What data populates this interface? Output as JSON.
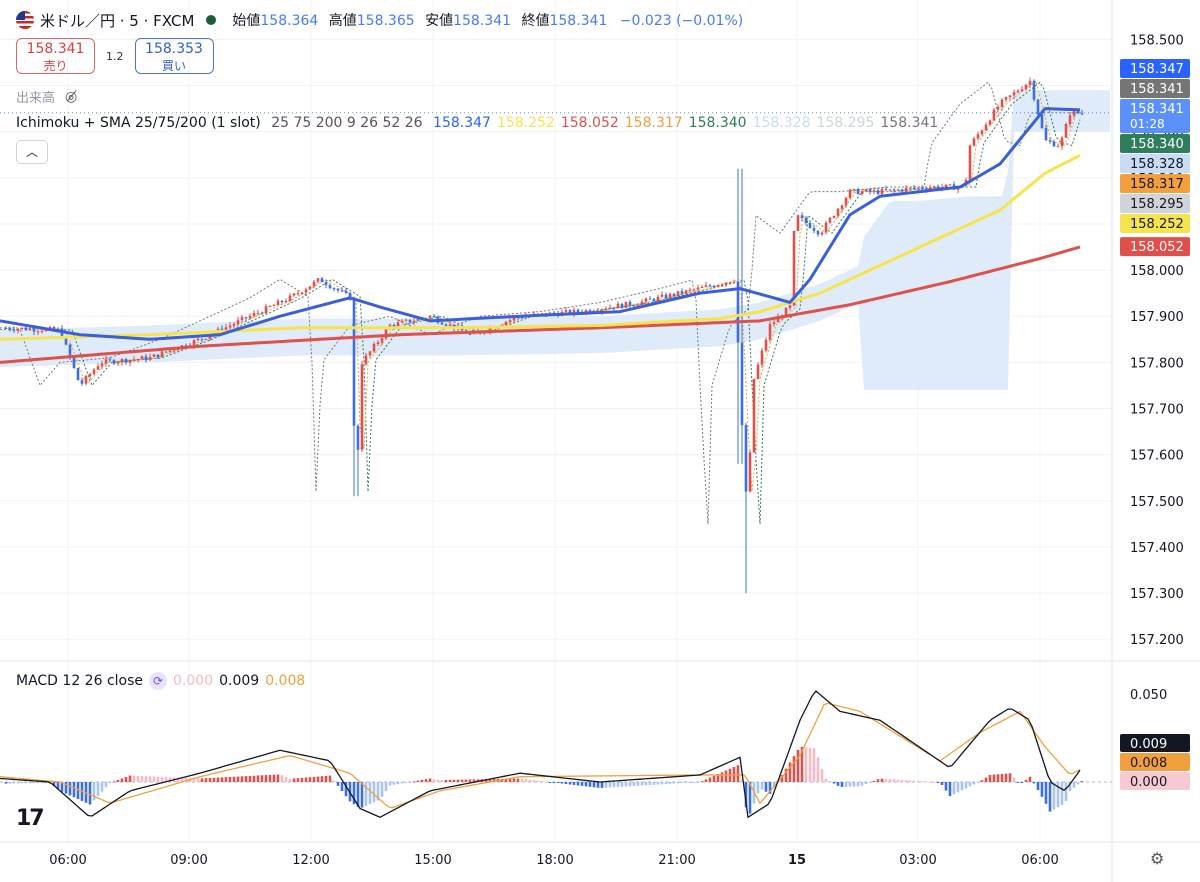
{
  "header": {
    "symbol": "米ドル／円 · 5 · FXCM",
    "open_label": "始値",
    "open": "158.364",
    "high_label": "高値",
    "high": "158.365",
    "low_label": "安値",
    "low": "158.341",
    "close_label": "終値",
    "close": "158.341",
    "change": "−0.023 (−0.01%)"
  },
  "trade": {
    "sell_price": "158.341",
    "sell_label": "売り",
    "spread": "1.2",
    "buy_price": "158.353",
    "buy_label": "買い"
  },
  "volume_label": "出来高",
  "indicator": {
    "name": "Ichimoku + SMA 25/75/200 (1 slot)",
    "params": "25 75 200 9 26 52 26",
    "values": [
      "158.347",
      "158.252",
      "158.052",
      "158.317",
      "158.340",
      "158.328",
      "158.295",
      "158.341"
    ],
    "colors": [
      "#2962ff",
      "#f5e44e",
      "#e0504b",
      "#f2a03d",
      "#2e7d5b",
      "#c9dcf5",
      "#d0d3d9",
      "#777777"
    ]
  },
  "macd": {
    "label": "MACD 12 26 close",
    "values": [
      "0.000",
      "0.009",
      "0.008"
    ],
    "colors": [
      "#f7b9c4",
      "#131722",
      "#f2a03d"
    ]
  },
  "logo_text": "17",
  "chart_data": {
    "type": "candlestick",
    "price_axis": {
      "ticks": [
        "158.500",
        "158.400",
        "158.300",
        "158.200",
        "158.100",
        "158.000",
        "157.900",
        "157.800",
        "157.700",
        "157.600",
        "157.500",
        "157.400",
        "157.300",
        "157.200"
      ],
      "range": [
        157.155,
        158.555
      ]
    },
    "time_axis": {
      "labels": [
        "06:00",
        "09:00",
        "12:00",
        "15:00",
        "18:00",
        "21:00",
        "15",
        "03:00",
        "06:00"
      ],
      "bold": [
        "15"
      ]
    },
    "price_tags": [
      {
        "text": "158.347",
        "value": 158.347,
        "bg": "#2962ff",
        "fg": "#ffffff"
      },
      {
        "text": "158.341",
        "value": 158.341,
        "bg": "#757575",
        "fg": "#ffffff"
      },
      {
        "text": "158.341",
        "value": 158.341,
        "bg": "#5b8ff9",
        "fg": "#ffffff",
        "sub": "01:28"
      },
      {
        "text": "158.340",
        "value": 158.34,
        "bg": "#2e7d5b",
        "fg": "#ffffff"
      },
      {
        "text": "158.328",
        "value": 158.328,
        "bg": "#c9dcf5",
        "fg": "#131722"
      },
      {
        "text": "158.317",
        "value": 158.317,
        "bg": "#f2a03d",
        "fg": "#131722"
      },
      {
        "text": "158.295",
        "value": 158.295,
        "bg": "#d0d3d9",
        "fg": "#131722"
      },
      {
        "text": "158.252",
        "value": 158.252,
        "bg": "#f5e44e",
        "fg": "#131722"
      },
      {
        "text": "158.052",
        "value": 158.052,
        "bg": "#e0504b",
        "fg": "#ffffff"
      }
    ],
    "path_keyframes": [
      [
        0,
        157.875
      ],
      [
        60,
        157.87
      ],
      [
        80,
        157.75
      ],
      [
        100,
        157.8
      ],
      [
        150,
        157.81
      ],
      [
        200,
        157.85
      ],
      [
        250,
        157.9
      ],
      [
        290,
        157.94
      ],
      [
        320,
        157.98
      ],
      [
        350,
        157.94
      ],
      [
        356,
        157.52
      ],
      [
        362,
        157.8
      ],
      [
        390,
        157.88
      ],
      [
        430,
        157.9
      ],
      [
        470,
        157.86
      ],
      [
        520,
        157.9
      ],
      [
        580,
        157.91
      ],
      [
        640,
        157.93
      ],
      [
        700,
        157.96
      ],
      [
        735,
        157.98
      ],
      [
        742,
        157.66
      ],
      [
        748,
        157.45
      ],
      [
        752,
        157.75
      ],
      [
        770,
        157.88
      ],
      [
        790,
        157.92
      ],
      [
        795,
        158.12
      ],
      [
        820,
        158.08
      ],
      [
        850,
        158.17
      ],
      [
        880,
        158.17
      ],
      [
        930,
        158.18
      ],
      [
        965,
        158.18
      ],
      [
        970,
        158.27
      ],
      [
        1000,
        158.36
      ],
      [
        1030,
        158.41
      ],
      [
        1045,
        158.28
      ],
      [
        1060,
        158.27
      ],
      [
        1070,
        158.34
      ],
      [
        1083,
        158.341
      ]
    ],
    "sma_keyframes": {
      "sma25": [
        [
          0,
          157.89
        ],
        [
          80,
          157.86
        ],
        [
          150,
          157.85
        ],
        [
          220,
          157.86
        ],
        [
          280,
          157.9
        ],
        [
          350,
          157.94
        ],
        [
          380,
          157.92
        ],
        [
          430,
          157.89
        ],
        [
          520,
          157.9
        ],
        [
          620,
          157.91
        ],
        [
          700,
          157.95
        ],
        [
          740,
          157.96
        ],
        [
          790,
          157.93
        ],
        [
          810,
          157.98
        ],
        [
          850,
          158.12
        ],
        [
          880,
          158.16
        ],
        [
          960,
          158.18
        ],
        [
          1000,
          158.23
        ],
        [
          1030,
          158.31
        ],
        [
          1045,
          158.35
        ],
        [
          1083,
          158.347
        ]
      ],
      "sma75": [
        [
          0,
          157.85
        ],
        [
          150,
          157.86
        ],
        [
          300,
          157.875
        ],
        [
          450,
          157.875
        ],
        [
          600,
          157.88
        ],
        [
          720,
          157.895
        ],
        [
          760,
          157.91
        ],
        [
          820,
          157.95
        ],
        [
          880,
          158.01
        ],
        [
          950,
          158.08
        ],
        [
          1000,
          158.13
        ],
        [
          1045,
          158.21
        ],
        [
          1083,
          158.252
        ]
      ],
      "sma200": [
        [
          0,
          157.8
        ],
        [
          200,
          157.835
        ],
        [
          400,
          157.86
        ],
        [
          600,
          157.875
        ],
        [
          760,
          157.89
        ],
        [
          850,
          157.925
        ],
        [
          950,
          157.975
        ],
        [
          1040,
          158.025
        ],
        [
          1083,
          158.052
        ]
      ]
    },
    "macd_axis": {
      "ticks": [
        "0.050"
      ],
      "zero": "0.000"
    },
    "macd_keyframes": {
      "macd": [
        [
          0,
          0.002
        ],
        [
          50,
          0.0
        ],
        [
          90,
          -0.02
        ],
        [
          130,
          -0.005
        ],
        [
          200,
          0.005
        ],
        [
          280,
          0.018
        ],
        [
          330,
          0.012
        ],
        [
          360,
          -0.015
        ],
        [
          380,
          -0.02
        ],
        [
          430,
          -0.005
        ],
        [
          520,
          0.005
        ],
        [
          600,
          0.0
        ],
        [
          700,
          0.004
        ],
        [
          740,
          0.014
        ],
        [
          748,
          -0.02
        ],
        [
          770,
          -0.012
        ],
        [
          800,
          0.035
        ],
        [
          815,
          0.052
        ],
        [
          840,
          0.04
        ],
        [
          880,
          0.035
        ],
        [
          950,
          0.008
        ],
        [
          990,
          0.035
        ],
        [
          1010,
          0.042
        ],
        [
          1030,
          0.035
        ],
        [
          1050,
          0.0
        ],
        [
          1065,
          -0.005
        ],
        [
          1083,
          0.009
        ]
      ],
      "signal": [
        [
          0,
          0.003
        ],
        [
          60,
          0.0
        ],
        [
          110,
          -0.012
        ],
        [
          200,
          0.003
        ],
        [
          290,
          0.015
        ],
        [
          350,
          0.005
        ],
        [
          390,
          -0.015
        ],
        [
          440,
          -0.005
        ],
        [
          520,
          0.003
        ],
        [
          700,
          0.004
        ],
        [
          745,
          0.004
        ],
        [
          760,
          -0.012
        ],
        [
          800,
          0.015
        ],
        [
          825,
          0.045
        ],
        [
          860,
          0.04
        ],
        [
          940,
          0.012
        ],
        [
          980,
          0.028
        ],
        [
          1020,
          0.04
        ],
        [
          1045,
          0.02
        ],
        [
          1070,
          0.004
        ],
        [
          1083,
          0.008
        ]
      ]
    }
  }
}
